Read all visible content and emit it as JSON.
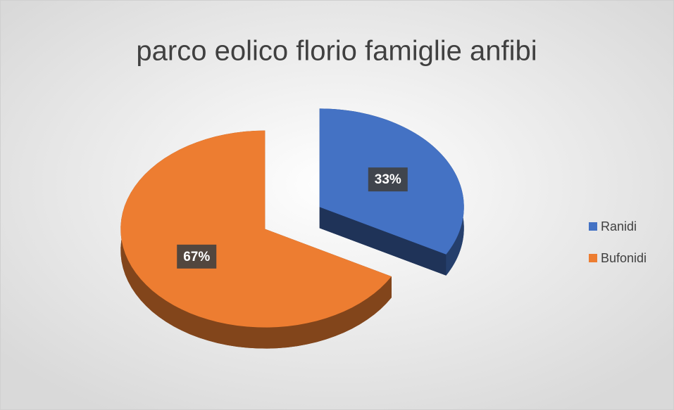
{
  "chart_data": {
    "type": "pie",
    "title": "parco eolico florio famiglie anfibi",
    "categories": [
      "Ranidi",
      "Bufonidi"
    ],
    "values": [
      33,
      67
    ],
    "value_labels": [
      "33%",
      "67%"
    ],
    "colors": [
      "#4472c4",
      "#ed7d31"
    ],
    "legend": "right"
  }
}
